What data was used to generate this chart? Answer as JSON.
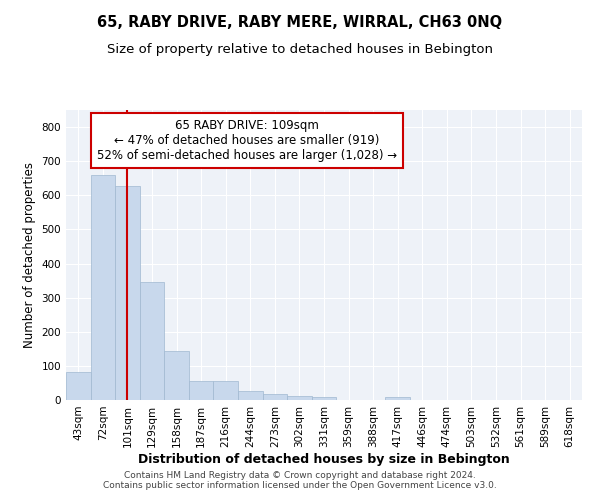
{
  "title": "65, RABY DRIVE, RABY MERE, WIRRAL, CH63 0NQ",
  "subtitle": "Size of property relative to detached houses in Bebington",
  "xlabel": "Distribution of detached houses by size in Bebington",
  "ylabel": "Number of detached properties",
  "categories": [
    "43sqm",
    "72sqm",
    "101sqm",
    "129sqm",
    "158sqm",
    "187sqm",
    "216sqm",
    "244sqm",
    "273sqm",
    "302sqm",
    "331sqm",
    "359sqm",
    "388sqm",
    "417sqm",
    "446sqm",
    "474sqm",
    "503sqm",
    "532sqm",
    "561sqm",
    "589sqm",
    "618sqm"
  ],
  "values": [
    83,
    660,
    628,
    345,
    145,
    57,
    57,
    25,
    18,
    13,
    9,
    0,
    0,
    8,
    0,
    0,
    0,
    0,
    0,
    0,
    0
  ],
  "bar_color": "#c8d8ec",
  "bar_edge_color": "#a0b8d0",
  "vline_color": "#cc0000",
  "vline_x": 2,
  "annotation_text": "65 RABY DRIVE: 109sqm\n← 47% of detached houses are smaller (919)\n52% of semi-detached houses are larger (1,028) →",
  "annotation_box_color": "#ffffff",
  "annotation_box_edgecolor": "#cc0000",
  "ylim": [
    0,
    850
  ],
  "yticks": [
    0,
    100,
    200,
    300,
    400,
    500,
    600,
    700,
    800
  ],
  "background_color": "#eef2f8",
  "footer_text": "Contains HM Land Registry data © Crown copyright and database right 2024.\nContains public sector information licensed under the Open Government Licence v3.0.",
  "title_fontsize": 10.5,
  "subtitle_fontsize": 9.5,
  "xlabel_fontsize": 9,
  "ylabel_fontsize": 8.5,
  "annot_fontsize": 8.5,
  "tick_fontsize": 7.5,
  "footer_fontsize": 6.5
}
